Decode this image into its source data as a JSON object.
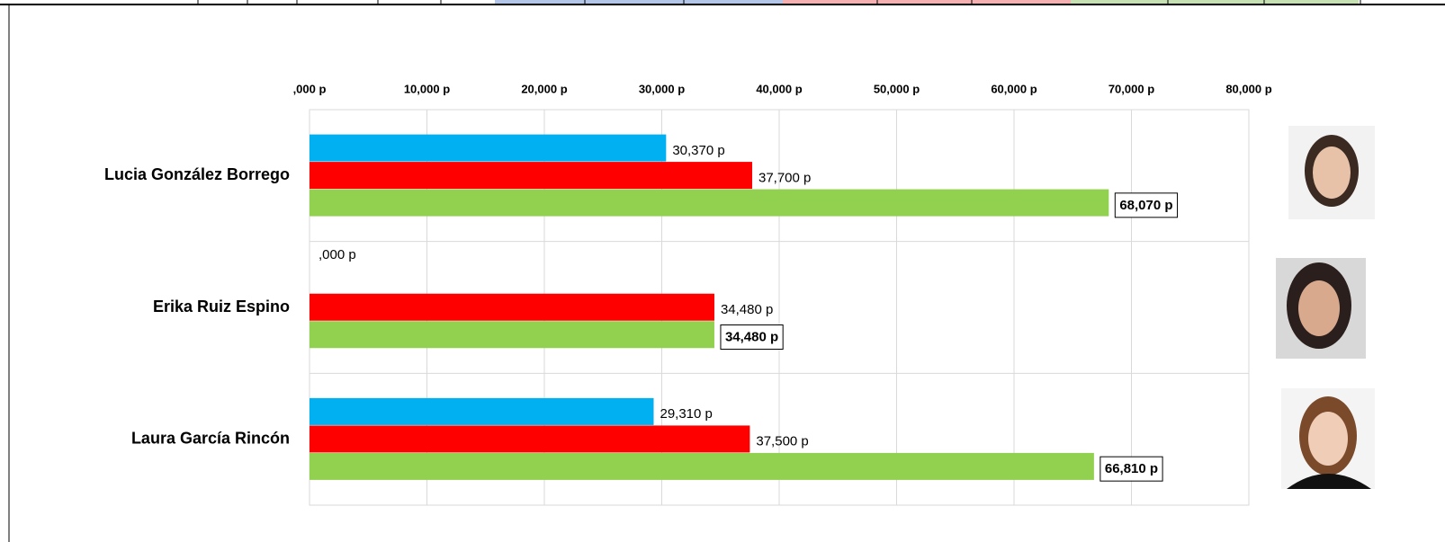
{
  "chart_data": {
    "type": "hbar",
    "categories": [
      "Lucia González Borrego",
      "Erika Ruiz Espino",
      "Laura García Rincón"
    ],
    "series": [
      {
        "color": "#00b0f0",
        "values": [
          30370,
          0,
          29310
        ],
        "value_labels": [
          "30,370 p",
          ",000 p",
          "29,310 p"
        ]
      },
      {
        "color": "#ff0000",
        "values": [
          37700,
          34480,
          37500
        ],
        "value_labels": [
          "37,700 p",
          "34,480 p",
          "37,500 p"
        ]
      },
      {
        "color": "#92d050",
        "values": [
          68070,
          34480,
          66810
        ],
        "value_labels": [
          "68,070 p",
          "34,480 p",
          "66,810 p"
        ],
        "boxed": true
      }
    ],
    "xlim": [
      0,
      80000
    ],
    "xticks": [
      {
        "value": 0,
        "label": ",000 p"
      },
      {
        "value": 10000,
        "label": "10,000 p"
      },
      {
        "value": 20000,
        "label": "20,000 p"
      },
      {
        "value": 30000,
        "label": "30,000 p"
      },
      {
        "value": 40000,
        "label": "40,000 p"
      },
      {
        "value": 50000,
        "label": "50,000 p"
      },
      {
        "value": 60000,
        "label": "60,000 p"
      },
      {
        "value": 70000,
        "label": "70,000 p"
      },
      {
        "value": 80000,
        "label": "80,000 p"
      }
    ],
    "grid": true
  }
}
